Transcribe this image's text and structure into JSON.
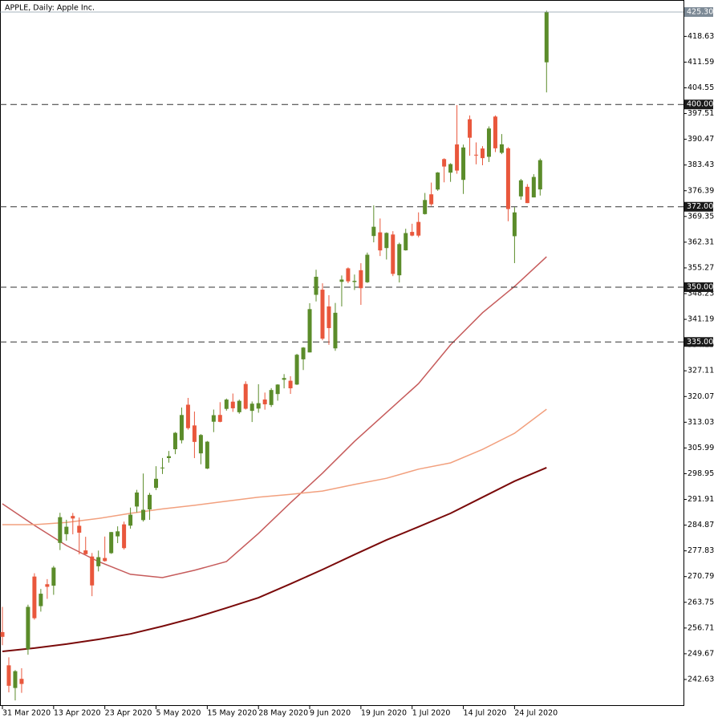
{
  "chart_data": {
    "type": "candlestick",
    "title": "APPLE, Daily:  Apple Inc.",
    "categories": [
      "31 Mar 2020",
      null,
      null,
      null,
      null,
      null,
      null,
      null,
      "13 Apr 2020",
      null,
      null,
      null,
      null,
      null,
      null,
      null,
      "23 Apr 2020",
      null,
      null,
      null,
      null,
      null,
      null,
      null,
      "5 May 2020",
      null,
      null,
      null,
      null,
      null,
      null,
      null,
      "15 May 2020",
      null,
      null,
      null,
      null,
      null,
      null,
      null,
      "28 May 2020",
      null,
      null,
      null,
      null,
      null,
      null,
      null,
      "9 Jun 2020",
      null,
      null,
      null,
      null,
      null,
      null,
      null,
      "19 Jun 2020",
      null,
      null,
      null,
      null,
      null,
      null,
      null,
      "1 Jul 2020",
      null,
      null,
      null,
      null,
      null,
      null,
      null,
      "14 Jul 2020",
      null,
      null,
      null,
      null,
      null,
      null,
      null,
      "24 Jul 2020",
      null,
      null,
      null,
      null,
      null
    ],
    "open": [
      255.6,
      246.5,
      240.3,
      242.8,
      250.9,
      270.8,
      262.7,
      268.7,
      268.3,
      280,
      282.4,
      287.38,
      284.69,
      277.95,
      276.28,
      273.61,
      275.87,
      277.2,
      281.8,
      285.08,
      284.73,
      289.96,
      286.25,
      289.17,
      295.06,
      300.46,
      303.22,
      305.64,
      308.1,
      317.83,
      312.15,
      304.51,
      300.35,
      313.17,
      315.03,
      316.68,
      318.66,
      315.77,
      323.5,
      316.14,
      316.77,
      319.25,
      317.75,
      320.75,
      324.66,
      324.39,
      323.35,
      330.25,
      332.14,
      347.9,
      349.31,
      344.72,
      333.25,
      351.46,
      355.15,
      351.41,
      354.64,
      351.34,
      364,
      365,
      360.7,
      364.41,
      353.25,
      360.08,
      365.12,
      367.85,
      370,
      375.41,
      376.72,
      385.05,
      381.34,
      389.06,
      379.36,
      395.96,
      386.25,
      387.95,
      385.67,
      396.69,
      386.77,
      387.99,
      363.95,
      374.84,
      377.47,
      374.56,
      376.75,
      411.54
    ],
    "high": [
      262.5,
      248.7,
      245.2,
      245.7,
      263.1,
      271.7,
      267.4,
      270.1,
      273.7,
      288.25,
      286.33,
      288.2,
      286.95,
      281.68,
      277.25,
      277.9,
      281.75,
      283.01,
      284.54,
      285.83,
      289.67,
      294.53,
      299,
      293.69,
      301,
      303.24,
      305.17,
      310.35,
      317.05,
      319.69,
      315.95,
      309.79,
      307.9,
      316.5,
      318.52,
      319.52,
      320.89,
      319.23,
      324.24,
      318.71,
      323.44,
      321.15,
      322.35,
      323.44,
      326.2,
      325.62,
      331.75,
      333.6,
      345.61,
      354.77,
      351.06,
      347.8,
      345.68,
      353.2,
      355.4,
      353.45,
      356.56,
      359.46,
      372.38,
      368.79,
      365,
      365.32,
      362.17,
      365.98,
      367.36,
      370.47,
      375.78,
      378.62,
      381.5,
      385.27,
      383.92,
      399.82,
      389.02,
      396.99,
      389.62,
      388.59,
      394,
      397,
      391.9,
      388.31,
      371.88,
      379.62,
      378.2,
      380.92,
      385.19,
      425.66
    ],
    "low": [
      252,
      239.1,
      236.9,
      238.97,
      249.4,
      259,
      261.2,
      264.7,
      265.8,
      278.05,
      280.63,
      282.35,
      276.86,
      276.85,
      265.43,
      272.2,
      274.87,
      277,
      279.95,
      278.2,
      283.89,
      288.35,
      285.85,
      286.32,
      294.46,
      298.87,
      301.97,
      304.29,
      307.24,
      311,
      303.21,
      301.53,
      300.21,
      310.32,
      313.01,
      316.2,
      315.87,
      315.35,
      316.5,
      313.09,
      315.63,
      316.47,
      317.21,
      318.93,
      322.3,
      320.78,
      323.23,
      327.32,
      332.14,
      346.09,
      335.48,
      334.22,
      332.58,
      344.72,
      351.09,
      349.22,
      345.15,
      351.15,
      362.27,
      358.52,
      357.57,
      353.02,
      351.28,
      360,
      363.91,
      363.64,
      369.87,
      372.23,
      376.36,
      378.69,
      378.82,
      381.03,
      375.51,
      385.96,
      383.62,
      383.36,
      384.25,
      386.97,
      386.41,
      368.04,
      356.58,
      373.92,
      372.99,
      374.56,
      375.07,
      403.3
    ],
    "close": [
      254.3,
      240.9,
      244.9,
      241.4,
      262.5,
      259.4,
      266.1,
      267.99,
      273.25,
      287.05,
      284.43,
      286.69,
      282.8,
      276.93,
      268.37,
      276.1,
      275.03,
      282.97,
      283.17,
      278.58,
      287.73,
      293.8,
      289.07,
      293.16,
      297.56,
      300.63,
      303.74,
      310.13,
      315.01,
      311.41,
      307.65,
      309.54,
      307.71,
      314.96,
      313.14,
      319.23,
      316.85,
      318.89,
      316.73,
      318.11,
      318.25,
      317.94,
      321.85,
      323.34,
      325.12,
      322.32,
      331.5,
      333.46,
      343.99,
      352.84,
      335.9,
      338.8,
      342.99,
      352.08,
      351.59,
      351.73,
      349.72,
      358.87,
      366.53,
      360.06,
      364.84,
      353.63,
      361.78,
      364.8,
      364.11,
      364.11,
      373.85,
      372.69,
      381.37,
      383.01,
      383.68,
      381.91,
      388.23,
      390.9,
      386.09,
      385.31,
      393.43,
      388,
      389.09,
      371.38,
      370.46,
      379.24,
      373.01,
      380.16,
      384.76,
      425.3
    ],
    "up_color": "#5b8c2a",
    "down_color": "#e9573c",
    "series": [
      {
        "color": "#c65b5b",
        "x": [
          0,
          5,
          10,
          15,
          20,
          25,
          30,
          35,
          40,
          45,
          50,
          55,
          60,
          65,
          70,
          75,
          80,
          85
        ],
        "values": [
          290.7,
          284.8,
          279.3,
          274.9,
          271.4,
          270.5,
          272.5,
          274.9,
          282.6,
          291,
          299.1,
          307.8,
          315.7,
          323.6,
          334.2,
          343,
          350.2,
          358.3
        ]
      },
      {
        "color": "#f2a07e",
        "x": [
          0,
          5,
          10,
          15,
          20,
          25,
          30,
          35,
          40,
          45,
          50,
          55,
          60,
          65,
          70,
          75,
          80,
          85
        ],
        "values": [
          285,
          285,
          285.6,
          286.7,
          288.1,
          289.3,
          290.3,
          291.4,
          292.5,
          293.3,
          294.2,
          296,
          297.7,
          300.2,
          301.9,
          305.6,
          310,
          316.6
        ]
      },
      {
        "color": "#7a0a0a",
        "x": [
          0,
          5,
          10,
          15,
          20,
          25,
          30,
          35,
          40,
          45,
          50,
          55,
          60,
          65,
          70,
          75,
          80,
          85
        ],
        "values": [
          250.3,
          251.2,
          252.3,
          253.6,
          255.1,
          257.2,
          259.5,
          262.2,
          265,
          268.8,
          272.7,
          276.8,
          280.8,
          284.4,
          288.1,
          292.5,
          296.9,
          300.6
        ]
      }
    ],
    "ylim": [
      235.38,
      428.59
    ],
    "yticks": [
      242.63,
      249.67,
      256.71,
      263.75,
      270.79,
      277.83,
      284.87,
      291.91,
      298.95,
      305.99,
      313.03,
      320.07,
      327.11,
      334.15,
      341.19,
      348.23,
      355.27,
      362.31,
      369.35,
      376.39,
      383.43,
      390.47,
      397.51,
      404.55,
      411.59,
      418.63
    ],
    "levels": [
      {
        "value": 400,
        "label": "400.00"
      },
      {
        "value": 372,
        "label": "372.00"
      },
      {
        "value": 350,
        "label": "350.00"
      },
      {
        "value": 335,
        "label": "335.00"
      }
    ],
    "last_price": {
      "value": 425.3,
      "label": "425.30"
    }
  }
}
